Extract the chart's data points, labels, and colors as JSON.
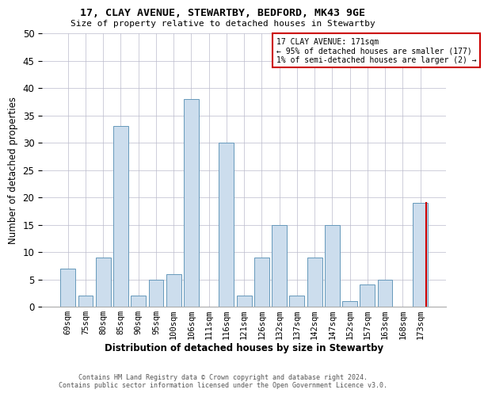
{
  "title": "17, CLAY AVENUE, STEWARTBY, BEDFORD, MK43 9GE",
  "subtitle": "Size of property relative to detached houses in Stewartby",
  "xlabel": "Distribution of detached houses by size in Stewartby",
  "ylabel": "Number of detached properties",
  "categories": [
    "69sqm",
    "75sqm",
    "80sqm",
    "85sqm",
    "90sqm",
    "95sqm",
    "100sqm",
    "106sqm",
    "111sqm",
    "116sqm",
    "121sqm",
    "126sqm",
    "132sqm",
    "137sqm",
    "142sqm",
    "147sqm",
    "152sqm",
    "157sqm",
    "163sqm",
    "168sqm",
    "173sqm"
  ],
  "values": [
    7,
    2,
    9,
    33,
    2,
    5,
    6,
    38,
    0,
    30,
    2,
    9,
    15,
    2,
    9,
    15,
    1,
    4,
    5,
    0,
    19
  ],
  "bar_color": "#ccdded",
  "bar_edge_color": "#6699bb",
  "highlight_bar_index": 20,
  "highlight_edge_color": "#cc0000",
  "annotation_box_text": "17 CLAY AVENUE: 171sqm\n← 95% of detached houses are smaller (177)\n1% of semi-detached houses are larger (2) →",
  "ylim": [
    0,
    50
  ],
  "yticks": [
    0,
    5,
    10,
    15,
    20,
    25,
    30,
    35,
    40,
    45,
    50
  ],
  "footer_line1": "Contains HM Land Registry data © Crown copyright and database right 2024.",
  "footer_line2": "Contains public sector information licensed under the Open Government Licence v3.0.",
  "background_color": "#ffffff",
  "grid_color": "#bbbbcc"
}
